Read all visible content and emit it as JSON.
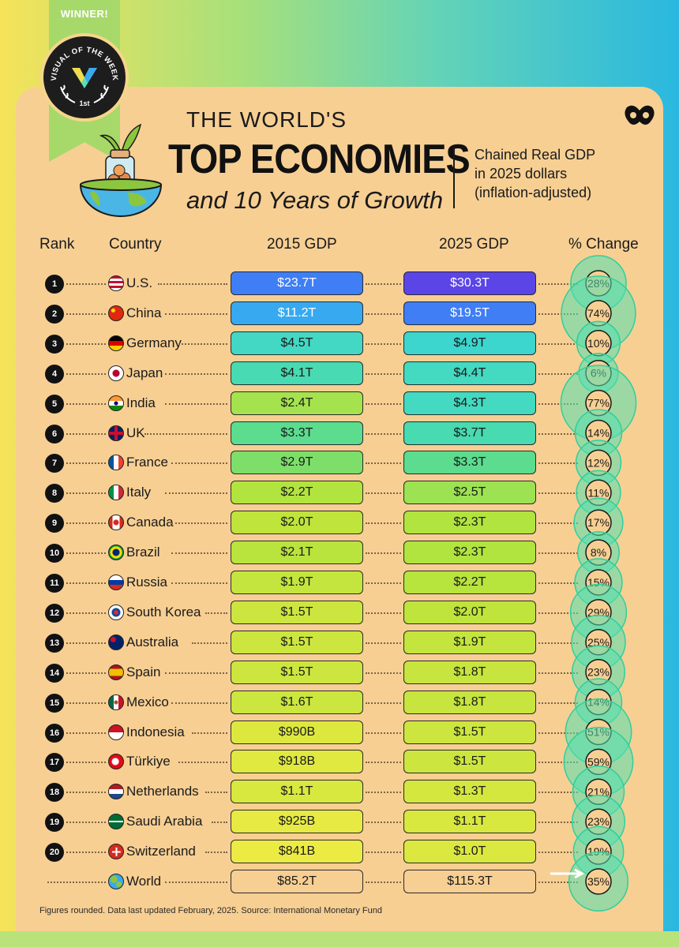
{
  "badge": {
    "winner": "WINNER!",
    "arc_text": "VISUAL OF THE WEEK",
    "place": "1st"
  },
  "title": {
    "line1": "THE WORLD'S",
    "line2": "TOP ECONOMIES",
    "line3": "and 10 Years of Growth"
  },
  "note": {
    "line1": "Chained Real GDP",
    "line2": "in 2025 dollars",
    "line3": "(inflation-adjusted)"
  },
  "headers": {
    "rank": "Rank",
    "country": "Country",
    "gdp2015": "2015 GDP",
    "gdp2025": "2025 GDP",
    "change": "% Change"
  },
  "footer": "Figures rounded. Data last updated February, 2025. Source: International Monetary Fund",
  "colors": {
    "background": "#f7cf93",
    "bubble": "#52e0b0",
    "dark": "#111111"
  },
  "chart_data": {
    "type": "table",
    "columns": [
      "Rank",
      "Country",
      "2015 GDP",
      "2025 GDP",
      "% Change"
    ],
    "rows": [
      {
        "rank": "1",
        "country": "U.S.",
        "flag": "us-flag-icon",
        "gdp2015": "$23.7T",
        "gdp2025": "$30.3T",
        "change": "28%",
        "change_value": 28,
        "c2015": "#3f7ef5",
        "c2025": "#5b45e6"
      },
      {
        "rank": "2",
        "country": "China",
        "flag": "china-flag-icon",
        "gdp2015": "$11.2T",
        "gdp2025": "$19.5T",
        "change": "74%",
        "change_value": 74,
        "c2015": "#37a9f0",
        "c2025": "#3f7ef5"
      },
      {
        "rank": "3",
        "country": "Germany",
        "flag": "germany-flag-icon",
        "gdp2015": "$4.5T",
        "gdp2025": "$4.9T",
        "change": "10%",
        "change_value": 10,
        "c2015": "#43d8c4",
        "c2025": "#3cd6cf"
      },
      {
        "rank": "4",
        "country": "Japan",
        "flag": "japan-flag-icon",
        "gdp2015": "$4.1T",
        "gdp2025": "$4.4T",
        "change": "6%",
        "change_value": 6,
        "c2015": "#48dab2",
        "c2025": "#44d9c1"
      },
      {
        "rank": "5",
        "country": "India",
        "flag": "india-flag-icon",
        "gdp2015": "$2.4T",
        "gdp2025": "$4.3T",
        "change": "77%",
        "change_value": 77,
        "c2015": "#a5e34e",
        "c2025": "#44d9c1"
      },
      {
        "rank": "6",
        "country": "UK",
        "flag": "uk-flag-icon",
        "gdp2015": "$3.3T",
        "gdp2025": "$3.7T",
        "change": "14%",
        "change_value": 14,
        "c2015": "#5bdc8e",
        "c2025": "#48dab0"
      },
      {
        "rank": "7",
        "country": "France",
        "flag": "france-flag-icon",
        "gdp2015": "$2.9T",
        "gdp2025": "$3.3T",
        "change": "12%",
        "change_value": 12,
        "c2015": "#7ddf6a",
        "c2025": "#5bdc8e"
      },
      {
        "rank": "8",
        "country": "Italy",
        "flag": "italy-flag-icon",
        "gdp2015": "$2.2T",
        "gdp2025": "$2.5T",
        "change": "11%",
        "change_value": 11,
        "c2015": "#b2e440",
        "c2025": "#9de252"
      },
      {
        "rank": "9",
        "country": "Canada",
        "flag": "canada-flag-icon",
        "gdp2015": "$2.0T",
        "gdp2025": "$2.3T",
        "change": "17%",
        "change_value": 17,
        "c2015": "#bfe43c",
        "c2025": "#b2e440"
      },
      {
        "rank": "10",
        "country": "Brazil",
        "flag": "brazil-flag-icon",
        "gdp2015": "$2.1T",
        "gdp2025": "$2.3T",
        "change": "8%",
        "change_value": 8,
        "c2015": "#b9e43e",
        "c2025": "#b2e440"
      },
      {
        "rank": "11",
        "country": "Russia",
        "flag": "russia-flag-icon",
        "gdp2015": "$1.9T",
        "gdp2025": "$2.2T",
        "change": "15%",
        "change_value": 15,
        "c2015": "#c4e53e",
        "c2025": "#b8e43e"
      },
      {
        "rank": "12",
        "country": "South Korea",
        "flag": "south-korea-flag-icon",
        "gdp2015": "$1.5T",
        "gdp2025": "$2.0T",
        "change": "29%",
        "change_value": 29,
        "c2015": "#cde63f",
        "c2025": "#bfe43c"
      },
      {
        "rank": "13",
        "country": "Australia",
        "flag": "australia-flag-icon",
        "gdp2015": "$1.5T",
        "gdp2025": "$1.9T",
        "change": "25%",
        "change_value": 25,
        "c2015": "#cde63f",
        "c2025": "#c4e53e"
      },
      {
        "rank": "14",
        "country": "Spain",
        "flag": "spain-flag-icon",
        "gdp2015": "$1.5T",
        "gdp2025": "$1.8T",
        "change": "23%",
        "change_value": 23,
        "c2015": "#cde63f",
        "c2025": "#c7e53e"
      },
      {
        "rank": "15",
        "country": "Mexico",
        "flag": "mexico-flag-icon",
        "gdp2015": "$1.6T",
        "gdp2025": "$1.8T",
        "change": "14%",
        "change_value": 14,
        "c2015": "#cbe63e",
        "c2025": "#c7e53e"
      },
      {
        "rank": "16",
        "country": "Indonesia",
        "flag": "indonesia-flag-icon",
        "gdp2015": "$990B",
        "gdp2025": "$1.5T",
        "change": "51%",
        "change_value": 51,
        "c2015": "#dde83f",
        "c2025": "#cde63f"
      },
      {
        "rank": "17",
        "country": "Türkiye",
        "flag": "turkiye-flag-icon",
        "gdp2015": "$918B",
        "gdp2025": "$1.5T",
        "change": "59%",
        "change_value": 59,
        "c2015": "#e0e940",
        "c2025": "#cde63f"
      },
      {
        "rank": "18",
        "country": "Netherlands",
        "flag": "netherlands-flag-icon",
        "gdp2015": "$1.1T",
        "gdp2025": "$1.3T",
        "change": "21%",
        "change_value": 21,
        "c2015": "#d8e83f",
        "c2025": "#d3e73f"
      },
      {
        "rank": "19",
        "country": "Saudi Arabia",
        "flag": "saudi-arabia-flag-icon",
        "gdp2015": "$925B",
        "gdp2025": "$1.1T",
        "change": "23%",
        "change_value": 23,
        "c2015": "#e7ea42",
        "c2025": "#d8e83f"
      },
      {
        "rank": "20",
        "country": "Switzerland",
        "flag": "switzerland-flag-icon",
        "gdp2015": "$841B",
        "gdp2025": "$1.0T",
        "change": "19%",
        "change_value": 19,
        "c2015": "#eceb44",
        "c2025": "#dbe83f"
      }
    ],
    "world": {
      "country": "World",
      "flag": "globe-icon",
      "gdp2015": "$85.2T",
      "gdp2025": "$115.3T",
      "change": "35%",
      "change_value": 35
    }
  }
}
